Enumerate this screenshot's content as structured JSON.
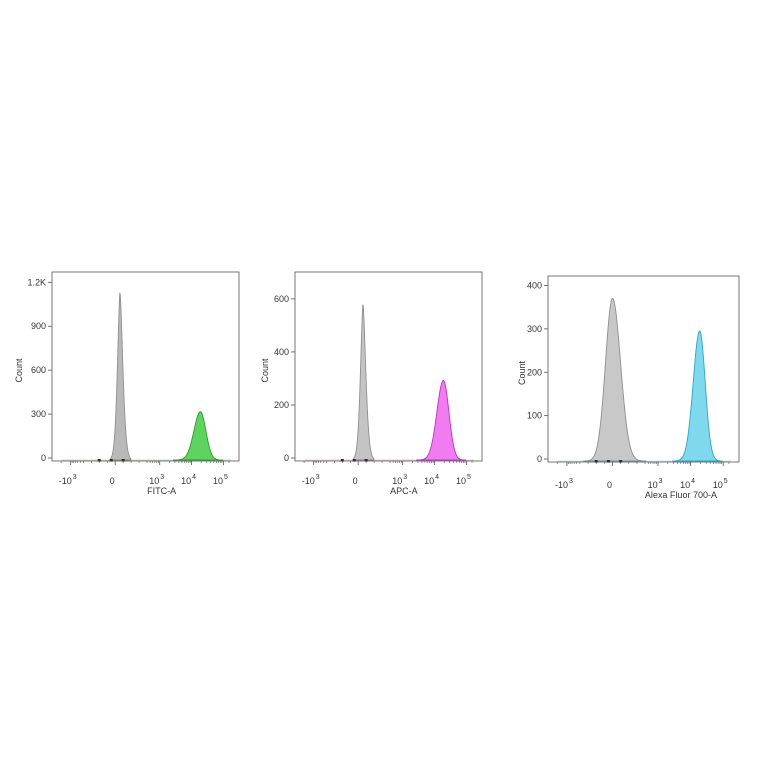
{
  "chart_data": [
    {
      "type": "histogram",
      "xlabel": "FITC-A",
      "ylabel": "Count",
      "x_scale": "biexponential",
      "y_ticks": [
        "0",
        "300",
        "600",
        "900",
        "1.2K"
      ],
      "y_tick_values": [
        0,
        300,
        600,
        900,
        1200
      ],
      "ylim": [
        0,
        1250
      ],
      "x_ticks": [
        {
          "value": -1000,
          "base": "-10",
          "exp": "3"
        },
        {
          "value": 0,
          "base": "0",
          "exp": ""
        },
        {
          "value": 1000,
          "base": "10",
          "exp": "3"
        },
        {
          "value": 10000,
          "base": "10",
          "exp": "4"
        },
        {
          "value": 100000,
          "base": "10",
          "exp": "5"
        }
      ],
      "series": [
        {
          "color": "#b9b9b9",
          "stroke": "#8f8f8f",
          "peak_x": 60,
          "peak_count": 1150,
          "kind": "control"
        },
        {
          "color": "#5fd35f",
          "stroke": "#2f9a2f",
          "peak_x": 19000,
          "peak_count": 330,
          "kind": "stained"
        }
      ]
    },
    {
      "type": "histogram",
      "xlabel": "APC-A",
      "ylabel": "Count",
      "x_scale": "biexponential",
      "y_ticks": [
        "0",
        "200",
        "400",
        "600"
      ],
      "y_tick_values": [
        0,
        200,
        400,
        600
      ],
      "ylim": [
        0,
        690
      ],
      "x_ticks": [
        {
          "value": -1000,
          "base": "-10",
          "exp": "3"
        },
        {
          "value": 0,
          "base": "0",
          "exp": ""
        },
        {
          "value": 1000,
          "base": "10",
          "exp": "3"
        },
        {
          "value": 10000,
          "base": "10",
          "exp": "4"
        },
        {
          "value": 100000,
          "base": "10",
          "exp": "5"
        }
      ],
      "series": [
        {
          "color": "#c4c4c4",
          "stroke": "#8f8f8f",
          "peak_x": 60,
          "peak_count": 590,
          "kind": "control"
        },
        {
          "color": "#f07cf0",
          "stroke": "#c22fc2",
          "peak_x": 19000,
          "peak_count": 300,
          "kind": "stained"
        }
      ]
    },
    {
      "type": "histogram",
      "xlabel": "Alexa Fluor 700-A",
      "ylabel": "Count",
      "x_scale": "biexponential",
      "y_ticks": [
        "0",
        "100",
        "200",
        "300",
        "400"
      ],
      "y_tick_values": [
        0,
        100,
        200,
        300,
        400
      ],
      "ylim": [
        0,
        415
      ],
      "x_ticks": [
        {
          "value": -1000,
          "base": "-10",
          "exp": "3"
        },
        {
          "value": 0,
          "base": "0",
          "exp": ""
        },
        {
          "value": 1000,
          "base": "10",
          "exp": "3"
        },
        {
          "value": 10000,
          "base": "10",
          "exp": "4"
        },
        {
          "value": 100000,
          "base": "10",
          "exp": "5"
        }
      ],
      "series": [
        {
          "color": "#c8c8c8",
          "stroke": "#8f8f8f",
          "peak_x": 0,
          "peak_count": 375,
          "kind": "control"
        },
        {
          "color": "#7fd8ec",
          "stroke": "#2fa6c4",
          "peak_x": 19000,
          "peak_count": 300,
          "kind": "stained"
        }
      ]
    }
  ]
}
